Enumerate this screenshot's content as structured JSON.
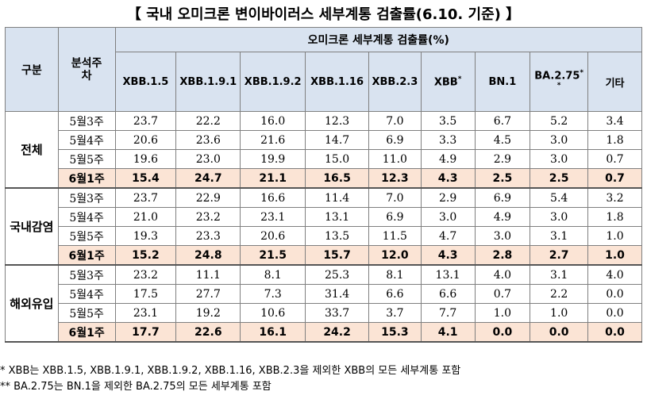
{
  "title": "【 국내 오미크론 변이바이러스 세부계통 검출률(6.10. 기준) 】",
  "header": {
    "category": "구분",
    "period": "분석주\n차",
    "group": "오미크론 세부계통 검출률(%)",
    "variants": [
      {
        "label": "XBB.1.5",
        "mark": ""
      },
      {
        "label": "XBB.1.9.1",
        "mark": ""
      },
      {
        "label": "XBB.1.9.2",
        "mark": ""
      },
      {
        "label": "XBB.1.16",
        "mark": ""
      },
      {
        "label": "XBB.2.3",
        "mark": ""
      },
      {
        "label": "XBB",
        "mark": "*"
      },
      {
        "label": "BN.1",
        "mark": ""
      },
      {
        "label": "BA.2.75",
        "mark": "*\n*"
      },
      {
        "label": "기타",
        "mark": ""
      }
    ]
  },
  "groups": [
    {
      "name": "전체",
      "rows": [
        {
          "week": "5월3주",
          "values": [
            "23.7",
            "22.2",
            "16.0",
            "12.3",
            "7.0",
            "3.5",
            "6.7",
            "5.2",
            "3.4"
          ]
        },
        {
          "week": "5월4주",
          "values": [
            "20.6",
            "23.6",
            "21.6",
            "14.7",
            "6.9",
            "3.3",
            "4.5",
            "3.0",
            "1.8"
          ]
        },
        {
          "week": "5월5주",
          "values": [
            "19.6",
            "23.0",
            "19.9",
            "15.0",
            "11.0",
            "4.9",
            "2.9",
            "3.0",
            "0.7"
          ]
        },
        {
          "week": "6월1주",
          "values": [
            "15.4",
            "24.7",
            "21.1",
            "16.5",
            "12.3",
            "4.3",
            "2.5",
            "2.5",
            "0.7"
          ]
        }
      ]
    },
    {
      "name": "국내감염",
      "rows": [
        {
          "week": "5월3주",
          "values": [
            "23.7",
            "22.9",
            "16.6",
            "11.4",
            "7.0",
            "2.9",
            "6.9",
            "5.4",
            "3.2"
          ]
        },
        {
          "week": "5월4주",
          "values": [
            "21.0",
            "23.2",
            "23.1",
            "13.1",
            "6.9",
            "3.0",
            "4.9",
            "3.0",
            "1.8"
          ]
        },
        {
          "week": "5월5주",
          "values": [
            "19.3",
            "23.3",
            "20.6",
            "13.5",
            "11.5",
            "4.7",
            "3.0",
            "3.1",
            "1.0"
          ]
        },
        {
          "week": "6월1주",
          "values": [
            "15.2",
            "24.8",
            "21.5",
            "15.7",
            "12.0",
            "4.3",
            "2.8",
            "2.7",
            "1.0"
          ]
        }
      ]
    },
    {
      "name": "해외유입",
      "rows": [
        {
          "week": "5월3주",
          "values": [
            "23.2",
            "11.1",
            "8.1",
            "25.3",
            "8.1",
            "13.1",
            "4.0",
            "3.1",
            "4.0"
          ]
        },
        {
          "week": "5월4주",
          "values": [
            "17.5",
            "27.7",
            "7.3",
            "31.4",
            "6.6",
            "6.6",
            "0.7",
            "2.2",
            "0.0"
          ]
        },
        {
          "week": "5월5주",
          "values": [
            "23.1",
            "19.2",
            "10.6",
            "33.7",
            "3.7",
            "7.7",
            "1.0",
            "1.0",
            "0.0"
          ]
        },
        {
          "week": "6월1주",
          "values": [
            "17.7",
            "22.6",
            "16.1",
            "24.2",
            "15.3",
            "4.1",
            "0.0",
            "0.0",
            "0.0"
          ]
        }
      ]
    }
  ],
  "notes": [
    " * XBB는 XBB.1.5, XBB.1.9.1, XBB.1.9.2, XBB.1.16, XBB.2.3을 제외한 XBB의 모든 세부계통 포함",
    "** BA.2.75는 BN.1을 제외한 BA.2.75의 모든 세부계통 포함"
  ],
  "colors": {
    "header_bg": "#d9e3f0",
    "highlight_bg": "#fbe4d5",
    "border": "#7f7f7f"
  }
}
